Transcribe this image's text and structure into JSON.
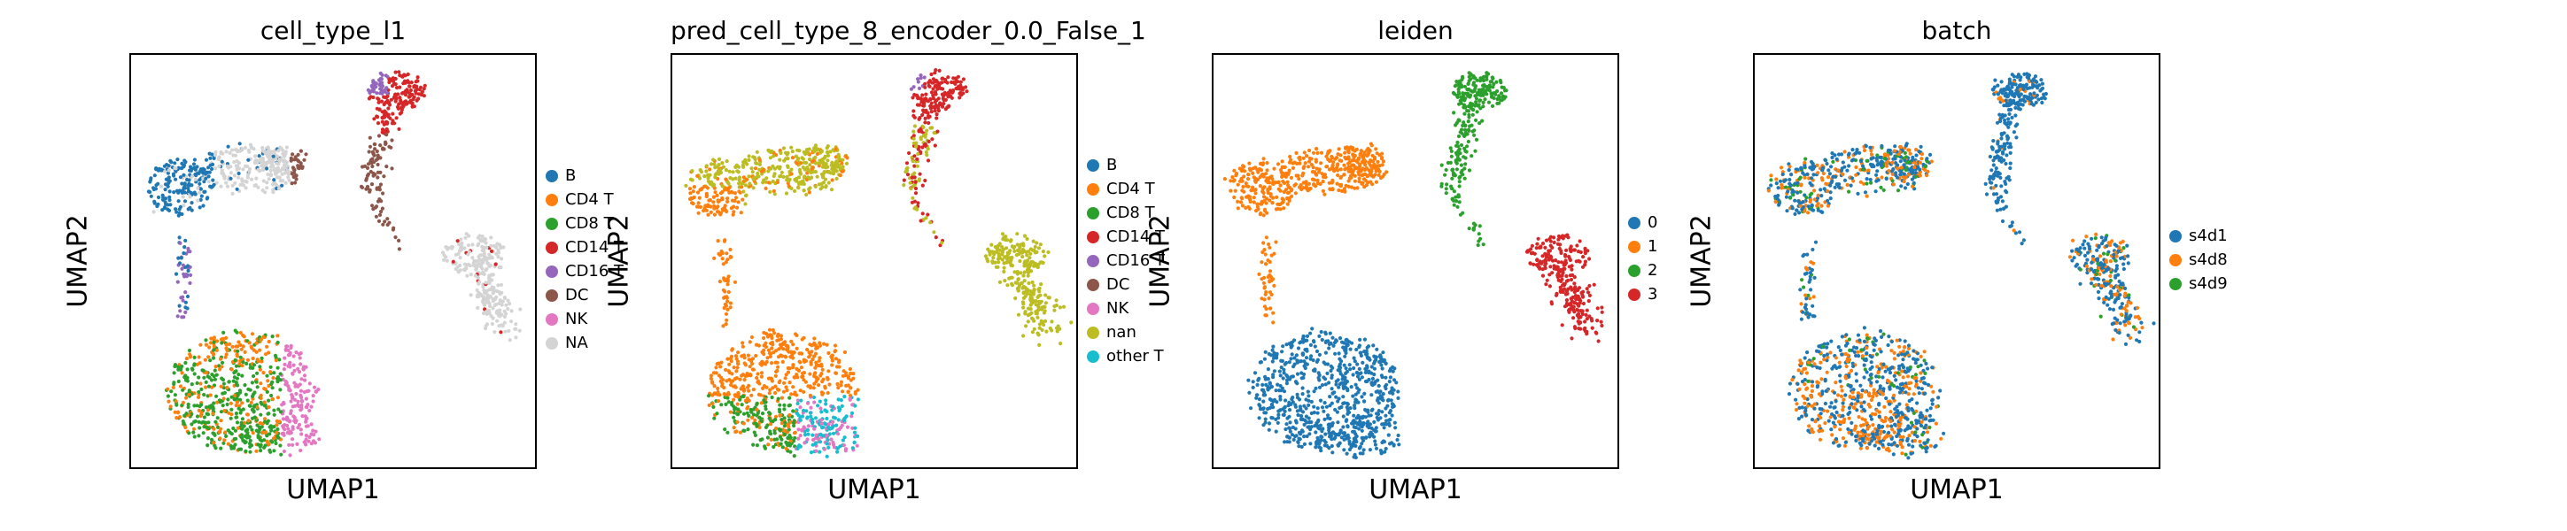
{
  "chart_data": [
    {
      "type": "scatter",
      "title": "cell_type_l1",
      "xlabel": "UMAP1",
      "ylabel": "UMAP2",
      "legend": [
        "B",
        "CD4 T",
        "CD8 T",
        "CD14 T",
        "CD16 T",
        "DC",
        "NK",
        "NA"
      ],
      "colors": [
        "#1f77b4",
        "#ff7f0e",
        "#2ca02c",
        "#d62728",
        "#9467bd",
        "#8c564b",
        "#e377c2",
        "#d4d4d4"
      ],
      "legend_position": "right"
    },
    {
      "type": "scatter",
      "title": "pred_cell_type_8_encoder_0.0_False_1",
      "xlabel": "UMAP1",
      "ylabel": "UMAP2",
      "legend": [
        "B",
        "CD4 T",
        "CD8 T",
        "CD14 T",
        "CD16 T",
        "DC",
        "NK",
        "nan",
        "other T"
      ],
      "colors": [
        "#1f77b4",
        "#ff7f0e",
        "#2ca02c",
        "#d62728",
        "#9467bd",
        "#8c564b",
        "#e377c2",
        "#bcbd22",
        "#17becf"
      ],
      "legend_position": "right"
    },
    {
      "type": "scatter",
      "title": "leiden",
      "xlabel": "UMAP1",
      "ylabel": "UMAP2",
      "legend": [
        "0",
        "1",
        "2",
        "3"
      ],
      "colors": [
        "#1f77b4",
        "#ff7f0e",
        "#2ca02c",
        "#d62728"
      ],
      "legend_position": "right"
    },
    {
      "type": "scatter",
      "title": "batch",
      "xlabel": "UMAP1",
      "ylabel": "UMAP2",
      "legend": [
        "s4d1",
        "s4d8",
        "s4d9"
      ],
      "colors": [
        "#1f77b4",
        "#ff7f0e",
        "#2ca02c"
      ],
      "legend_position": "right"
    }
  ]
}
